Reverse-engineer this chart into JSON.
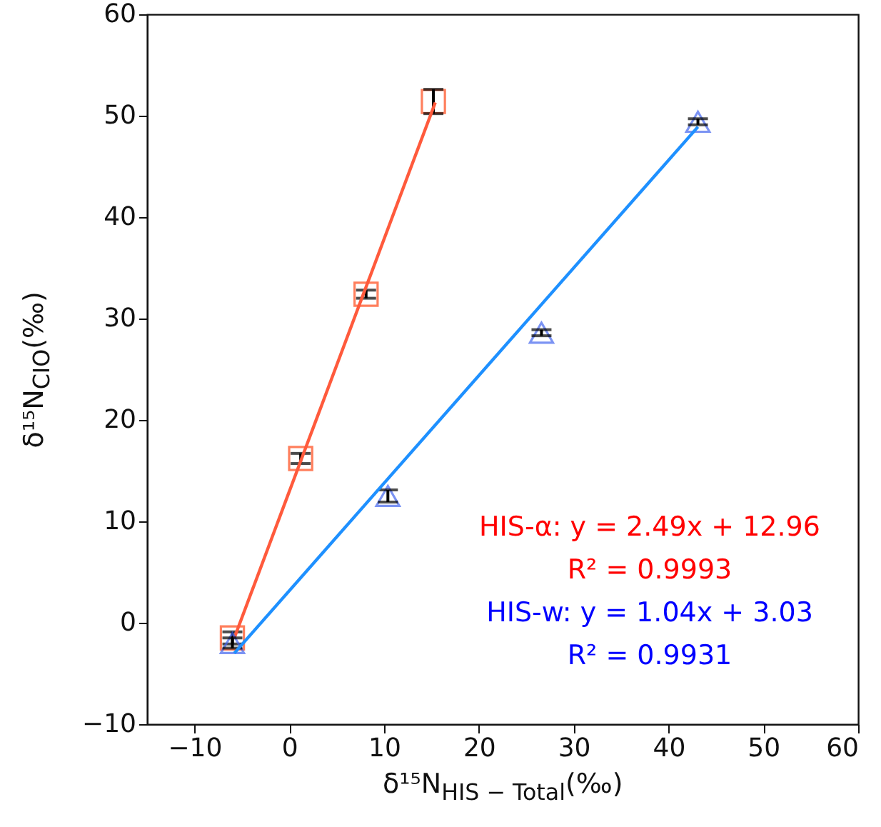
{
  "chart_data": {
    "type": "scatter",
    "xlabel": "δ¹⁵N$_{HIS − Total}$(‰)",
    "ylabel": "δ¹⁵N$_{CIO}$(‰)",
    "xlim": [
      -15,
      60
    ],
    "xticks": [
      -10,
      0,
      10,
      20,
      30,
      40,
      50,
      60
    ],
    "ylim": [
      -10,
      60
    ],
    "yticks": [
      -10,
      0,
      10,
      20,
      30,
      40,
      50,
      60
    ],
    "grid": false,
    "series": [
      {
        "marker": "square",
        "color": "#ff4a1a",
        "x": [
          -6.0,
          1.2,
          8.1,
          15.2
        ],
        "values": [
          -1.5,
          16.2,
          32.4,
          51.4
        ],
        "errors": [
          0.6,
          0.5,
          0.4,
          1.2
        ]
      },
      {
        "type": "line",
        "color": "#ff5a3c",
        "x": [
          -5.8,
          15.4
        ],
        "values": [
          -1.5,
          51.3
        ]
      },
      {
        "marker": "triangle",
        "color": "#4466ee",
        "x": [
          -6.0,
          10.4,
          26.6,
          43.1
        ],
        "values": [
          -2.0,
          12.5,
          28.6,
          49.4
        ],
        "errors": [
          0.5,
          0.6,
          0.3,
          0.3
        ]
      },
      {
        "type": "line",
        "color": "#1e90ff",
        "x": [
          -5.8,
          43.1
        ],
        "values": [
          -3.0,
          48.9
        ]
      }
    ],
    "annotations": [
      "HIS-α: y = 2.49x + 12.96",
      "R² = 0.9993",
      "HIS-w: y = 1.04x + 3.03",
      "R² = 0.9931"
    ]
  }
}
